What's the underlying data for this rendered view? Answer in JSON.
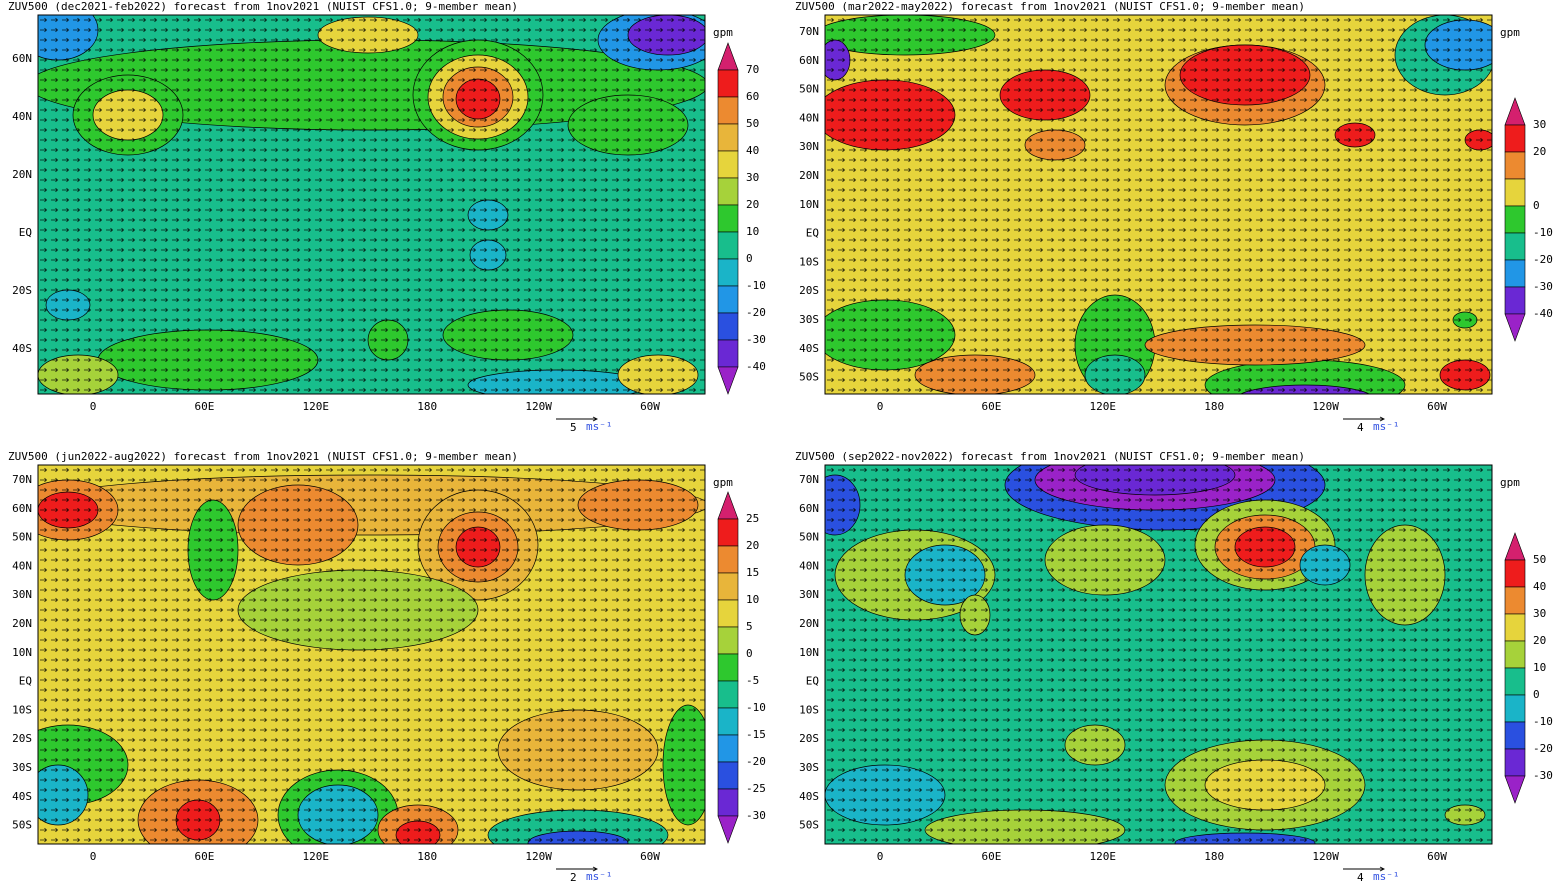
{
  "panels": [
    {
      "title": "ZUV500 (dec2021-feb2022) forecast from 1nov2021 (NUIST CFS1.0; 9-member mean)",
      "unit": "gpm",
      "lat_labels": [
        "60N",
        "40N",
        "20N",
        "EQ",
        "20S",
        "40S"
      ],
      "lon_labels": [
        "0",
        "60E",
        "120E",
        "180",
        "120W",
        "60W"
      ],
      "levels": [
        70,
        60,
        50,
        40,
        30,
        20,
        10,
        0,
        -10,
        -20,
        -30,
        -40
      ],
      "colors": [
        "#d4206e",
        "#ee1c1c",
        "#ec8a30",
        "#e8b53a",
        "#e6d43c",
        "#a6d23a",
        "#2ec82e",
        "#18be8c",
        "#1ab4c8",
        "#2196e6",
        "#2a50e0",
        "#6a28d4",
        "#9a22c8"
      ],
      "vector_scale": "5",
      "vector_unit": "ms⁻¹"
    },
    {
      "title": "ZUV500 (mar2022-may2022) forecast from 1nov2021 (NUIST CFS1.0; 9-member mean)",
      "unit": "gpm",
      "lat_labels": [
        "70N",
        "60N",
        "50N",
        "40N",
        "30N",
        "20N",
        "10N",
        "EQ",
        "10S",
        "20S",
        "30S",
        "40S",
        "50S"
      ],
      "lon_labels": [
        "0",
        "60E",
        "120E",
        "180",
        "120W",
        "60W"
      ],
      "levels": [
        30,
        20,
        null,
        0,
        -10,
        -20,
        -30,
        -40
      ],
      "colors": [
        "#d4206e",
        "#ee1c1c",
        "#ec8a30",
        "#e6d43c",
        "#2ec82e",
        "#18be8c",
        "#2196e6",
        "#6a28d4",
        "#9a22c8"
      ],
      "vector_scale": "4",
      "vector_unit": "ms⁻¹"
    },
    {
      "title": "ZUV500 (jun2022-aug2022) forecast from 1nov2021 (NUIST CFS1.0; 9-member mean)",
      "unit": "gpm",
      "lat_labels": [
        "70N",
        "60N",
        "50N",
        "40N",
        "30N",
        "20N",
        "10N",
        "EQ",
        "10S",
        "20S",
        "30S",
        "40S",
        "50S"
      ],
      "lon_labels": [
        "0",
        "60E",
        "120E",
        "180",
        "120W",
        "60W"
      ],
      "levels": [
        25,
        20,
        15,
        10,
        5,
        0,
        -5,
        -10,
        -15,
        -20,
        -25,
        -30
      ],
      "colors": [
        "#d4206e",
        "#ee1c1c",
        "#ec8a30",
        "#e8b53a",
        "#e6d43c",
        "#a6d23a",
        "#2ec82e",
        "#18be8c",
        "#1ab4c8",
        "#2196e6",
        "#2a50e0",
        "#6a28d4",
        "#9a22c8"
      ],
      "vector_scale": "2",
      "vector_unit": "ms⁻¹"
    },
    {
      "title": "ZUV500 (sep2022-nov2022) forecast from 1nov2021 (NUIST CFS1.0; 9-member mean)",
      "unit": "gpm",
      "lat_labels": [
        "70N",
        "60N",
        "50N",
        "40N",
        "30N",
        "20N",
        "10N",
        "EQ",
        "10S",
        "20S",
        "30S",
        "40S",
        "50S"
      ],
      "lon_labels": [
        "0",
        "60E",
        "120E",
        "180",
        "120W",
        "60W"
      ],
      "levels": [
        50,
        40,
        30,
        20,
        10,
        0,
        -10,
        -20,
        -30
      ],
      "colors": [
        "#d4206e",
        "#ee1c1c",
        "#ec8a30",
        "#e6d43c",
        "#a6d23a",
        "#18be8c",
        "#1ab4c8",
        "#2a50e0",
        "#6a28d4",
        "#9a22c8"
      ],
      "vector_scale": "4",
      "vector_unit": "ms⁻¹"
    }
  ]
}
